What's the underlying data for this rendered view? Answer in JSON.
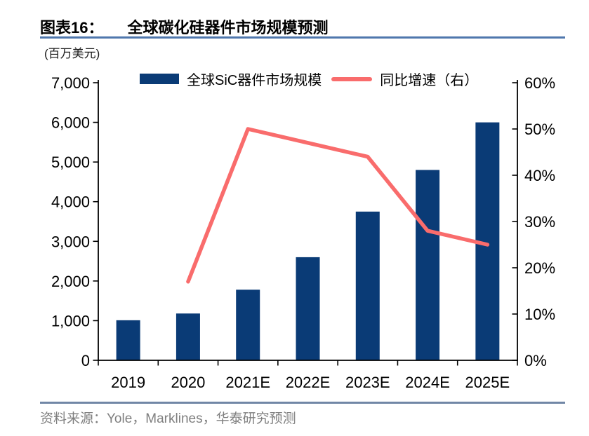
{
  "header": {
    "figure_label": "图表16：",
    "title": "全球碳化硅器件市场规模预测"
  },
  "unit_label": "(百万美元)",
  "legend": [
    {
      "label": "全球SiC器件市场规模",
      "marker": "bar-swatch"
    },
    {
      "label": "同比增速（右）",
      "marker": "line-swatch"
    }
  ],
  "footer": {
    "source": "资料来源：Yole，Marklines，华泰研究预测"
  },
  "colors": {
    "bar": "#0a3b76",
    "line": "#f96c6c",
    "axis": "#000000",
    "title_rule": "#4f77ad",
    "footer_rule": "#7187a6",
    "footer_text": "#7f7f7f"
  },
  "chart_data": {
    "type": "bar",
    "subtype": "bar+line combo",
    "title": "全球碳化硅器件市场规模预测",
    "categories": [
      "2019",
      "2020",
      "2021E",
      "2022E",
      "2023E",
      "2024E",
      "2025E"
    ],
    "series": [
      {
        "name": "全球SiC器件市场规模",
        "type": "bar",
        "axis": "left",
        "unit": "百万美元",
        "values": [
          1010,
          1180,
          1780,
          2600,
          3750,
          4800,
          6000
        ]
      },
      {
        "name": "同比增速（右）",
        "type": "line",
        "axis": "right",
        "unit": "%",
        "values": [
          null,
          17,
          50,
          47,
          44,
          28,
          25
        ]
      }
    ],
    "left_axis": {
      "min": 0,
      "max": 7000,
      "step": 1000
    },
    "right_axis": {
      "min": 0,
      "max": 60,
      "step": 10,
      "suffix": "%"
    },
    "grid": false,
    "legend_position": "top"
  }
}
